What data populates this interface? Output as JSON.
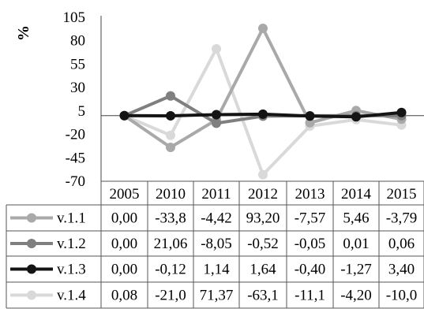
{
  "chart_data": {
    "type": "line",
    "ylabel": "%",
    "ylim": [
      -70,
      105
    ],
    "yticks": [
      "105",
      "80",
      "55",
      "30",
      "5",
      "-20",
      "-45",
      "-70"
    ],
    "categories": [
      "2005",
      "2010",
      "2011",
      "2012",
      "2013",
      "2014",
      "2015"
    ],
    "legend_position": "bottom (data table)",
    "grid": false,
    "series": [
      {
        "name": "v.1.1",
        "color": "#a9a9a9",
        "values": [
          0.0,
          -33.8,
          -4.42,
          93.2,
          -7.57,
          5.46,
          -3.79
        ],
        "labels": [
          "0,00",
          "-33,8",
          "-4,42",
          "93,20",
          "-7,57",
          "5,46",
          "-3,79"
        ]
      },
      {
        "name": "v.1.2",
        "color": "#7f7f7f",
        "values": [
          0.0,
          21.06,
          -8.05,
          -0.52,
          -0.05,
          0.01,
          0.06
        ],
        "labels": [
          "0,00",
          "21,06",
          "-8,05",
          "-0,52",
          "-0,05",
          "0,01",
          "0,06"
        ]
      },
      {
        "name": "v.1.3",
        "color": "#141414",
        "values": [
          0.0,
          -0.12,
          1.14,
          1.64,
          -0.4,
          -1.27,
          3.4
        ],
        "labels": [
          "0,00",
          "-0,12",
          "1,14",
          "1,64",
          "-0,40",
          "-1,27",
          "3,40"
        ]
      },
      {
        "name": "v.1.4",
        "color": "#d9d9d9",
        "values": [
          0.08,
          -21.0,
          71.37,
          -63.1,
          -11.1,
          -4.2,
          -10.0
        ],
        "labels": [
          "0,08",
          "-21,0",
          "71,37",
          "-63,1",
          "-11,1",
          "-4,20",
          "-10,0"
        ]
      }
    ]
  }
}
